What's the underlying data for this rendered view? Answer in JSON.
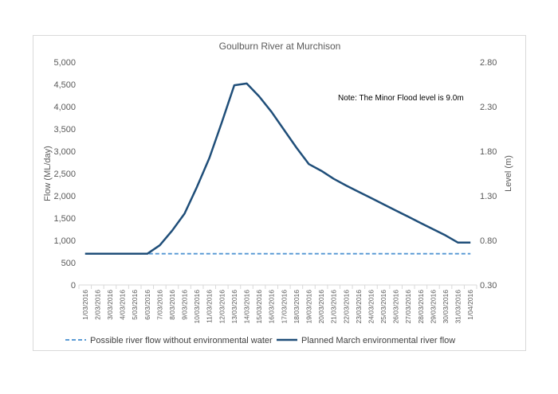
{
  "chart_data": {
    "type": "line",
    "title": "Goulburn River at Murchison",
    "ylabel": "Flow (ML/day)",
    "y2label": "Level (m)",
    "ylim": [
      0,
      5000
    ],
    "y2lim": [
      0.3,
      2.8
    ],
    "yticks": [
      "0",
      "500",
      "1,000",
      "1,500",
      "2,000",
      "2,500",
      "3,000",
      "3,500",
      "4,000",
      "4,500",
      "5,000"
    ],
    "y2ticks": [
      "0.30",
      "0.80",
      "1.30",
      "1.80",
      "2.30",
      "2.80"
    ],
    "categories": [
      "1/03/2016",
      "2/03/2016",
      "3/03/2016",
      "4/03/2016",
      "5/03/2016",
      "6/03/2016",
      "7/03/2016",
      "8/03/2016",
      "9/03/2016",
      "10/03/2016",
      "11/03/2016",
      "12/03/2016",
      "13/03/2016",
      "14/03/2016",
      "15/03/2016",
      "16/03/2016",
      "17/03/2016",
      "18/03/2016",
      "19/03/2016",
      "20/03/2016",
      "21/03/2016",
      "22/03/2016",
      "23/03/2016",
      "24/03/2016",
      "25/03/2016",
      "26/03/2016",
      "27/03/2016",
      "28/03/2016",
      "29/03/2016",
      "30/03/2016",
      "31/03/2016",
      "1/04/2016"
    ],
    "series": [
      {
        "name": "Possible river flow without environmental water",
        "color": "#5b9bd5",
        "style": "dashed",
        "values": [
          700,
          700,
          700,
          700,
          700,
          700,
          700,
          700,
          700,
          700,
          700,
          700,
          700,
          700,
          700,
          700,
          700,
          700,
          700,
          700,
          700,
          700,
          700,
          700,
          700,
          700,
          700,
          700,
          700,
          700,
          700,
          700
        ]
      },
      {
        "name": "Planned March environmental river flow",
        "color": "#1f4e79",
        "style": "solid",
        "values": [
          700,
          700,
          700,
          700,
          700,
          700,
          890,
          1220,
          1600,
          2200,
          2850,
          3650,
          4480,
          4520,
          4230,
          3880,
          3480,
          3080,
          2710,
          2560,
          2380,
          2230,
          2090,
          1950,
          1810,
          1670,
          1530,
          1390,
          1250,
          1110,
          950,
          950
        ]
      }
    ],
    "annotation": "Note: The Minor Flood level is 9.0m",
    "legend_position": "bottom",
    "grid": false
  }
}
